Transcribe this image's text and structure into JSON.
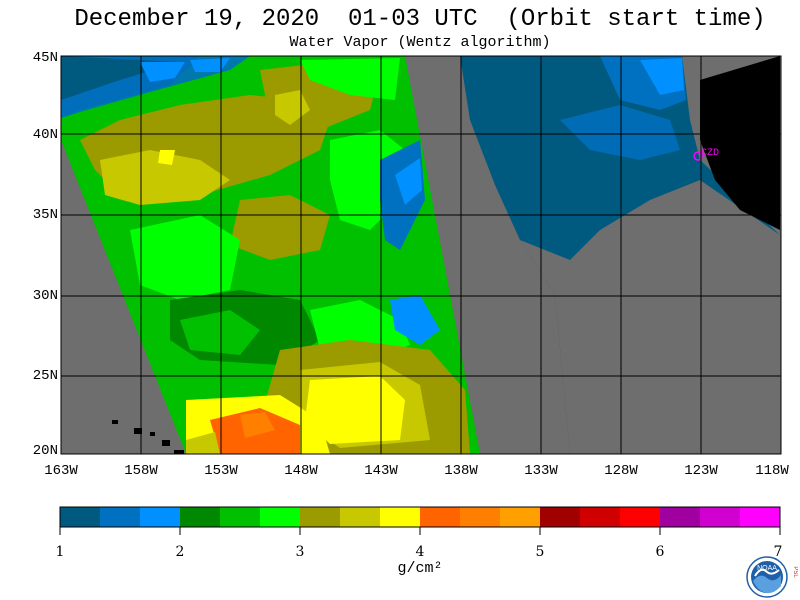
{
  "header": {
    "title": "December 19, 2020  01-03 UTC  (Orbit start time)",
    "subtitle": "Water Vapor (Wentz algorithm)"
  },
  "map": {
    "lat_labels": [
      "45N",
      "40N",
      "35N",
      "30N",
      "25N",
      "20N"
    ],
    "lon_labels": [
      "163W",
      "158W",
      "153W",
      "148W",
      "143W",
      "138W",
      "133W",
      "128W",
      "123W",
      "118W"
    ],
    "station_label": "CZD",
    "land_color": "#000000",
    "nodata_color": "#6e6e6e",
    "grid_color": "#000000"
  },
  "colorbar": {
    "labels": [
      "1",
      "2",
      "3",
      "4",
      "5",
      "6",
      "7"
    ],
    "unit": "g/cm²",
    "colors": [
      "#005a80",
      "#0070c0",
      "#0090ff",
      "#008800",
      "#00c000",
      "#00ff00",
      "#9b9b00",
      "#c8c800",
      "#ffff00",
      "#ff6400",
      "#ff8000",
      "#ffa000",
      "#a00000",
      "#d00000",
      "#ff0000",
      "#a000a0",
      "#d000d0",
      "#ff00ff"
    ]
  },
  "logo": {
    "text": "NOAA",
    "side_text": "PSL"
  }
}
